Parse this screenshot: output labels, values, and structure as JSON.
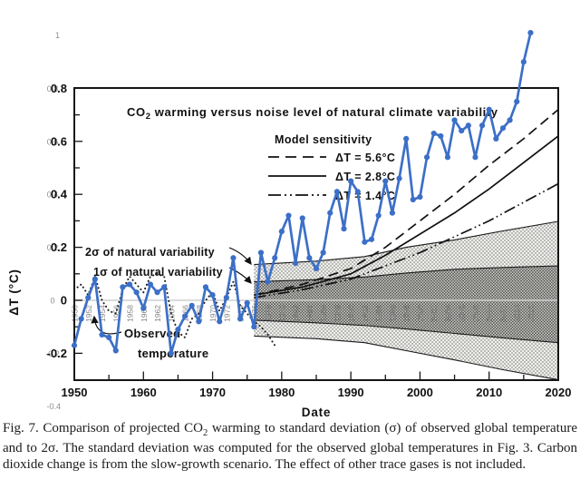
{
  "figure": {
    "title": {
      "prefix": "CO",
      "sub": "2",
      "rest": " warming versus noise level of natural climate variability"
    },
    "legend": {
      "heading": "Model sensitivity",
      "items": [
        {
          "style": "dashed",
          "label": "ΔT = 5.6°C"
        },
        {
          "style": "solid",
          "label": "ΔT = 2.8°C"
        },
        {
          "style": "dashdot",
          "label": "ΔT = 1.4°C"
        }
      ]
    },
    "annotations": {
      "sigma2": "2σ of natural variability",
      "sigma1": "1σ of natural variability",
      "observed_line1": "Observed",
      "observed_line2": "temperature"
    },
    "axes": {
      "y_label": "ΔT (°C)",
      "y_ticks": [
        "0.8",
        "0.6",
        "0.4",
        "0.2",
        "0",
        "-0.2"
      ],
      "y_tick_values": [
        0.8,
        0.6,
        0.4,
        0.2,
        0,
        -0.2
      ],
      "y_gray_top": "1",
      "y_gray_bottom": "-0.4",
      "x_label": "Date",
      "x_ticks": [
        "1950",
        "1960",
        "1970",
        "1980",
        "1990",
        "2000",
        "2010",
        "2020"
      ],
      "x_tick_values": [
        1950,
        1960,
        1970,
        1980,
        1990,
        2000,
        2010,
        2020
      ]
    },
    "inner_year_labels": [
      "1950",
      "1952",
      "1954",
      "1956",
      "1958",
      "1960",
      "1962",
      "1964",
      "1966",
      "1968",
      "1970",
      "1972",
      "1974",
      "1976",
      "1978",
      "1980",
      "1982",
      "1984",
      "1986",
      "1988",
      "1990",
      "1992",
      "1994",
      "1996",
      "1998",
      "2000",
      "2002",
      "2004",
      "2006",
      "2008",
      "2010",
      "2012",
      "2014",
      "2016"
    ]
  },
  "caption": {
    "p1": "Fig. 7. Comparison of projected CO",
    "sub": "2",
    "p2": " warming to standard deviation (σ) of observed global temperature and to 2σ. The standard deviation was computed for the observed global temperatures in Fig. 3. Carbon dioxide change is from the slow-growth scenario. The effect of other trace gases is not included."
  },
  "colors": {
    "observed_blue": "#3c6fc7",
    "axis_black": "#151515",
    "gray_label": "#8d8d8d",
    "inner_year_gray": "#6f6f6f",
    "zero_line_gray": "#cfcfcf"
  },
  "chart_data": {
    "type": "line",
    "title": "CO₂ warming versus noise level of natural climate variability",
    "xlabel": "Date",
    "ylabel": "ΔT (°C)",
    "xlim": [
      1950,
      2020
    ],
    "ylim": [
      -0.3,
      0.8
    ],
    "grid": false,
    "legend_position": "upper-center-right",
    "series": [
      {
        "name": "Observed temperature (modern record, blue with markers)",
        "style": "line+markers",
        "x_start": 1950,
        "values": [
          -0.17,
          -0.07,
          0.01,
          0.08,
          -0.13,
          -0.14,
          -0.19,
          0.05,
          0.06,
          0.03,
          -0.03,
          0.06,
          0.03,
          0.05,
          -0.2,
          -0.11,
          -0.06,
          -0.02,
          -0.08,
          0.05,
          0.02,
          -0.08,
          0.01,
          0.16,
          -0.07,
          -0.01,
          -0.1,
          0.18,
          0.07,
          0.16,
          0.26,
          0.32,
          0.14,
          0.31,
          0.16,
          0.12,
          0.18,
          0.33,
          0.41,
          0.27,
          0.45,
          0.41,
          0.22,
          0.23,
          0.32,
          0.45,
          0.33,
          0.46,
          0.61,
          0.38,
          0.39,
          0.54,
          0.63,
          0.62,
          0.54,
          0.68,
          0.64,
          0.66,
          0.54,
          0.66,
          0.72,
          0.61,
          0.65,
          0.68,
          0.75,
          0.9,
          1.01
        ]
      },
      {
        "name": "Observed temperature (original figure, dotted)",
        "style": "dotted",
        "x_start": 1950,
        "values": [
          0.04,
          0.06,
          0.02,
          0.09,
          0.0,
          -0.04,
          -0.05,
          0.04,
          0.09,
          0.06,
          0.03,
          0.09,
          0.1,
          0.09,
          -0.05,
          -0.12,
          -0.14,
          -0.07,
          -0.05,
          0.0,
          0.03,
          -0.04,
          0.01,
          0.07,
          -0.02,
          -0.05,
          -0.08,
          -0.1,
          -0.13,
          -0.17
        ]
      },
      {
        "name": "Model sensitivity ΔT = 5.6°C",
        "style": "dashed",
        "x": [
          1976,
          1983,
          1990,
          1995,
          2000,
          2005,
          2010,
          2015,
          2020
        ],
        "values": [
          0.02,
          0.06,
          0.12,
          0.2,
          0.3,
          0.4,
          0.51,
          0.61,
          0.72
        ]
      },
      {
        "name": "Model sensitivity ΔT = 2.8°C",
        "style": "solid",
        "x": [
          1976,
          1983,
          1990,
          1995,
          2000,
          2005,
          2010,
          2015,
          2020
        ],
        "values": [
          0.02,
          0.05,
          0.1,
          0.17,
          0.25,
          0.33,
          0.42,
          0.52,
          0.62
        ]
      },
      {
        "name": "Model sensitivity ΔT = 1.4°C",
        "style": "dashdot",
        "x": [
          1976,
          1983,
          1990,
          1995,
          2000,
          2005,
          2010,
          2015,
          2020
        ],
        "values": [
          0.01,
          0.04,
          0.08,
          0.13,
          0.18,
          0.24,
          0.3,
          0.37,
          0.44
        ]
      }
    ],
    "bands": [
      {
        "name": "2σ of natural variability",
        "x": [
          1976,
          1985,
          1992,
          1998,
          2005,
          2012,
          2020
        ],
        "top": [
          0.135,
          0.148,
          0.165,
          0.2,
          0.228,
          0.262,
          0.298
        ],
        "bottom": [
          -0.135,
          -0.145,
          -0.16,
          -0.19,
          -0.225,
          -0.262,
          -0.3
        ]
      },
      {
        "name": "1σ of natural variability",
        "x": [
          1976,
          1985,
          1992,
          1998,
          2005,
          2012,
          2020
        ],
        "top": [
          0.07,
          0.078,
          0.088,
          0.103,
          0.117,
          0.124,
          0.13
        ],
        "bottom": [
          -0.075,
          -0.085,
          -0.095,
          -0.108,
          -0.125,
          -0.142,
          -0.16
        ]
      }
    ]
  }
}
